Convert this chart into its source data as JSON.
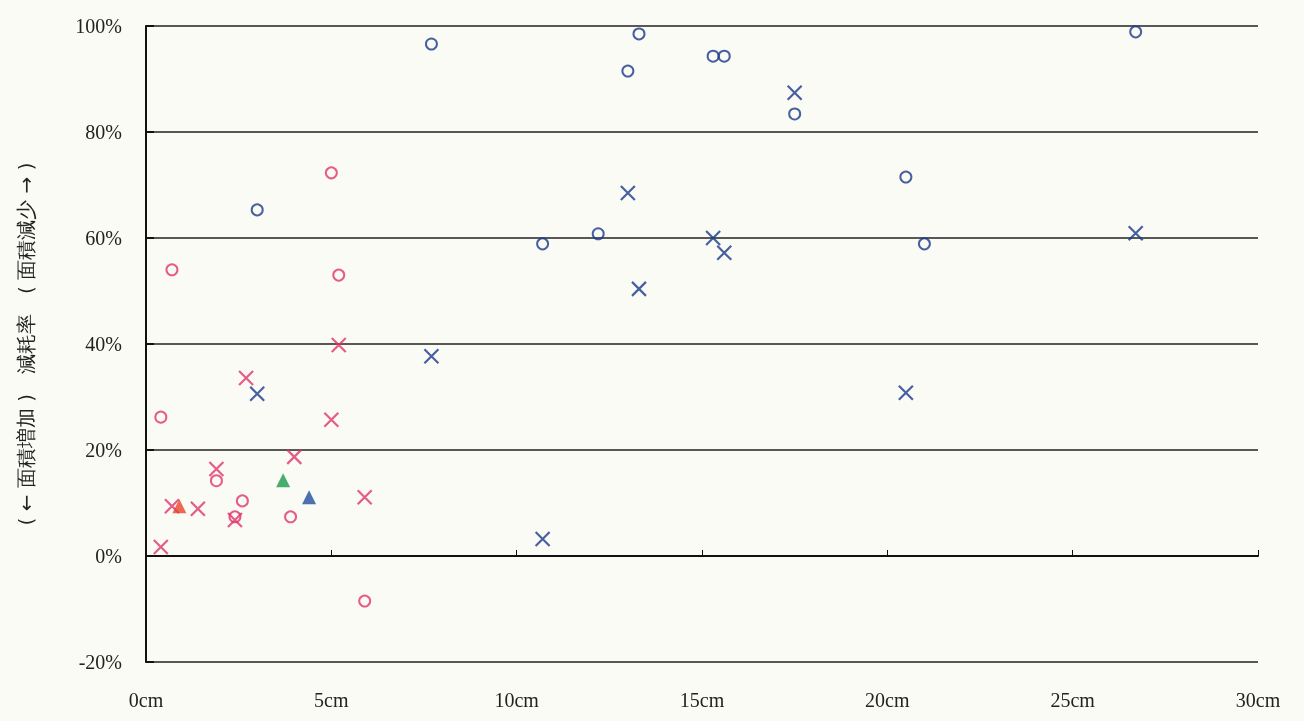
{
  "chart_data": {
    "type": "scatter",
    "ylabel": "( ← 面積増加 )　減耗率　( 面積減少 → )",
    "xlim": [
      0,
      30
    ],
    "xticks": [
      {
        "value": 0,
        "label": "0cm"
      },
      {
        "value": 5,
        "label": "5cm"
      },
      {
        "value": 10,
        "label": "10cm"
      },
      {
        "value": 15,
        "label": "15cm"
      },
      {
        "value": 20,
        "label": "20cm"
      },
      {
        "value": 25,
        "label": "25cm"
      },
      {
        "value": 30,
        "label": "30cm"
      }
    ],
    "ylim": [
      -20,
      100
    ],
    "yticks": [
      {
        "value": -20,
        "label": "-20%"
      },
      {
        "value": 0,
        "label": "0%"
      },
      {
        "value": 20,
        "label": "20%"
      },
      {
        "value": 40,
        "label": "40%"
      },
      {
        "value": 60,
        "label": "60%"
      },
      {
        "value": 80,
        "label": "80%"
      },
      {
        "value": 100,
        "label": "100%"
      }
    ],
    "grid": "y",
    "series": [
      {
        "color": "#1a3a8a",
        "marker": "circle",
        "x": [
          7.7,
          13.3,
          13.0,
          15.3,
          15.6,
          26.7,
          17.5,
          20.5,
          21.0,
          10.7,
          12.2,
          3.0
        ],
        "values": [
          96.6,
          98.5,
          91.5,
          94.3,
          94.3,
          98.9,
          83.4,
          71.5,
          58.9,
          58.9,
          60.8,
          65.3
        ]
      },
      {
        "color": "#1a3a8a",
        "marker": "cross",
        "x": [
          17.5,
          13.0,
          15.3,
          15.6,
          13.3,
          26.7,
          7.7,
          20.5,
          10.7,
          3.0
        ],
        "values": [
          87.4,
          68.5,
          60.0,
          57.2,
          50.4,
          60.9,
          37.7,
          30.8,
          3.2,
          30.6
        ]
      },
      {
        "color": "#e0336e",
        "marker": "circle",
        "x": [
          5.0,
          0.7,
          5.2,
          0.4,
          1.9,
          2.6,
          2.4,
          3.9,
          5.9
        ],
        "values": [
          72.3,
          54.0,
          53.0,
          26.2,
          14.2,
          10.4,
          7.4,
          7.4,
          -8.5
        ]
      },
      {
        "color": "#e0336e",
        "marker": "cross",
        "x": [
          5.2,
          2.7,
          5.0,
          4.0,
          1.9,
          0.7,
          1.4,
          2.4,
          5.9,
          0.4
        ],
        "values": [
          39.8,
          33.6,
          25.7,
          18.7,
          16.4,
          9.4,
          8.9,
          6.8,
          11.1,
          1.7
        ]
      },
      {
        "color": "#e8452a",
        "marker": "triangle",
        "x": [
          0.9
        ],
        "values": [
          9.4
        ]
      },
      {
        "color": "#1a9a4a",
        "marker": "triangle",
        "x": [
          3.7
        ],
        "values": [
          14.3
        ]
      },
      {
        "color": "#1f4fa0",
        "marker": "triangle",
        "x": [
          4.4
        ],
        "values": [
          11.1
        ]
      }
    ]
  }
}
